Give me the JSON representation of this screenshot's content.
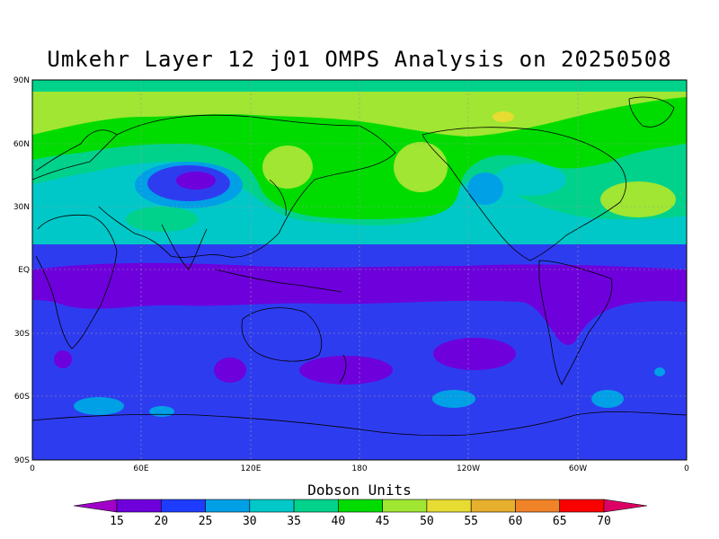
{
  "title": "Umkehr Layer 12 j01 OMPS Analysis on 20250508",
  "lat_labels": [
    "90N",
    "60N",
    "30N",
    "EQ",
    "30S",
    "60S",
    "90S"
  ],
  "lon_labels": [
    "0",
    "60E",
    "120E",
    "180",
    "120W",
    "60W",
    "0"
  ],
  "colorbar": {
    "title": "Dobson Units",
    "levels": [
      "15",
      "20",
      "25",
      "30",
      "35",
      "40",
      "45",
      "50",
      "55",
      "60",
      "65",
      "70"
    ],
    "colors": [
      "#a000c8",
      "#6e00dc",
      "#1e3cff",
      "#00a0e6",
      "#00c8c8",
      "#00d28c",
      "#00dc00",
      "#a0e632",
      "#e6dc32",
      "#e6af2d",
      "#f08228",
      "#fa0000",
      "#dc0064"
    ]
  },
  "map_colors": {
    "c20": "#2e3cf0",
    "c15": "#6e00dc",
    "c25": "#00a0e6",
    "c30": "#00c8c8",
    "c35": "#00d28c",
    "c40": "#00dc00",
    "c45": "#a0e632",
    "c50": "#e6dc32",
    "coast": "#000000"
  }
}
